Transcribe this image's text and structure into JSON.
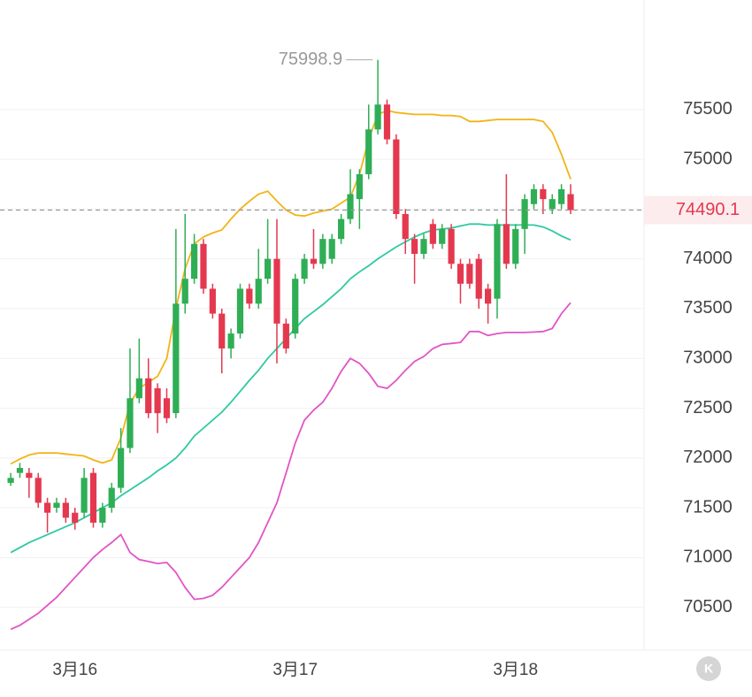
{
  "chart_data": {
    "type": "candlestick",
    "categories": [
      null,
      null,
      null,
      null,
      null,
      null,
      null,
      "3月16",
      null,
      null,
      null,
      null,
      null,
      null,
      null,
      null,
      null,
      null,
      null,
      null,
      null,
      null,
      null,
      null,
      null,
      null,
      null,
      null,
      null,
      null,
      null,
      "3月17",
      null,
      null,
      null,
      null,
      null,
      null,
      null,
      null,
      null,
      null,
      null,
      null,
      null,
      null,
      null,
      null,
      null,
      null,
      null,
      null,
      null,
      null,
      null,
      "3月18",
      null,
      null,
      null,
      null,
      null,
      null
    ],
    "open": [
      71750,
      71850,
      71850,
      71800,
      71550,
      71500,
      71550,
      71450,
      71450,
      71850,
      71350,
      71500,
      71700,
      72100,
      72600,
      72800,
      72700,
      72600,
      72450,
      73550,
      73800,
      74150,
      73700,
      73450,
      73100,
      73250,
      73700,
      73550,
      73800,
      74000,
      73350,
      73250,
      73800,
      74000,
      73950,
      74000,
      74200,
      74400,
      74600,
      74850,
      75300,
      75550,
      75200,
      74450,
      74200,
      74050,
      74350,
      74150,
      74300,
      73950,
      73950,
      74000,
      73700,
      73600,
      74350,
      73950,
      74300,
      74550,
      74700,
      74500,
      74550,
      74650
    ],
    "high": [
      71850,
      71950,
      71900,
      71850,
      71600,
      71600,
      71600,
      71500,
      71900,
      71900,
      71550,
      71750,
      72300,
      73100,
      73200,
      73000,
      72750,
      72700,
      74300,
      74450,
      74250,
      74200,
      73750,
      73500,
      73300,
      73750,
      73750,
      74100,
      74400,
      74400,
      73400,
      73850,
      74050,
      74300,
      74250,
      74250,
      74450,
      74900,
      74900,
      75550,
      75998.9,
      75600,
      75250,
      74500,
      74250,
      74250,
      74400,
      74350,
      74350,
      74000,
      74000,
      74050,
      73750,
      74400,
      74850,
      74350,
      74650,
      74750,
      74750,
      74650,
      74750,
      74750
    ],
    "low": [
      71720,
      71800,
      71600,
      71500,
      71250,
      71450,
      71350,
      71280,
      71400,
      71300,
      71300,
      71450,
      71650,
      72050,
      72550,
      72400,
      72250,
      72350,
      72400,
      73450,
      73750,
      73650,
      73400,
      72850,
      73000,
      73200,
      73500,
      73500,
      73750,
      72950,
      73050,
      73200,
      73750,
      73900,
      73900,
      73950,
      74150,
      74350,
      74300,
      74800,
      75250,
      75150,
      74400,
      74050,
      73750,
      74000,
      74100,
      74100,
      73900,
      73550,
      73700,
      73500,
      73350,
      73400,
      73900,
      73900,
      74050,
      74500,
      74450,
      74450,
      74500,
      74450
    ],
    "close": [
      71800,
      71900,
      71800,
      71550,
      71450,
      71550,
      71400,
      71350,
      71800,
      71350,
      71500,
      71700,
      72100,
      72600,
      72800,
      72450,
      72450,
      72400,
      73550,
      73800,
      74150,
      73700,
      73450,
      73100,
      73250,
      73700,
      73550,
      73800,
      74000,
      73350,
      73100,
      73800,
      74000,
      73950,
      74200,
      74200,
      74400,
      74650,
      74850,
      75300,
      75550,
      75200,
      74450,
      74200,
      74050,
      74200,
      74150,
      74300,
      73950,
      73750,
      73750,
      73600,
      73550,
      74350,
      73950,
      74300,
      74600,
      74700,
      74600,
      74600,
      74700,
      74490.1
    ],
    "up_color": "#2fae55",
    "down_color": "#e4384f",
    "bands": [
      {
        "color": "#f2b416",
        "values": [
          71940,
          71990,
          72030,
          72050,
          72050,
          72050,
          72040,
          72030,
          72020,
          71980,
          71950,
          71980,
          72200,
          72550,
          72700,
          72760,
          72820,
          73000,
          73500,
          73900,
          74150,
          74220,
          74260,
          74290,
          74400,
          74500,
          74580,
          74650,
          74680,
          74580,
          74490,
          74440,
          74430,
          74460,
          74480,
          74500,
          74560,
          74620,
          74850,
          75200,
          75450,
          75490,
          75470,
          75460,
          75450,
          75450,
          75450,
          75440,
          75440,
          75430,
          75380,
          75380,
          75390,
          75400,
          75400,
          75400,
          75400,
          75400,
          75380,
          75270,
          75050,
          74800
        ]
      },
      {
        "color": "#2ec9a2",
        "values": [
          71050,
          71100,
          71150,
          71190,
          71230,
          71270,
          71310,
          71350,
          71400,
          71450,
          71500,
          71550,
          71620,
          71680,
          71740,
          71800,
          71870,
          71930,
          72000,
          72100,
          72220,
          72300,
          72380,
          72460,
          72560,
          72670,
          72780,
          72880,
          73000,
          73100,
          73200,
          73300,
          73400,
          73470,
          73540,
          73620,
          73700,
          73800,
          73870,
          73930,
          74000,
          74060,
          74120,
          74170,
          74220,
          74260,
          74290,
          74300,
          74310,
          74330,
          74350,
          74350,
          74340,
          74340,
          74340,
          74340,
          74340,
          74340,
          74320,
          74280,
          74230,
          74190
        ]
      },
      {
        "color": "#e055c6",
        "values": [
          70280,
          70320,
          70380,
          70440,
          70520,
          70600,
          70700,
          70800,
          70900,
          71000,
          71080,
          71150,
          71230,
          71050,
          70980,
          70960,
          70940,
          70950,
          70850,
          70700,
          70580,
          70590,
          70620,
          70700,
          70800,
          70900,
          71000,
          71150,
          71350,
          71550,
          71850,
          72150,
          72380,
          72480,
          72560,
          72700,
          72870,
          73000,
          72950,
          72850,
          72720,
          72700,
          72780,
          72880,
          72970,
          73020,
          73100,
          73140,
          73150,
          73160,
          73270,
          73270,
          73230,
          73250,
          73260,
          73260,
          73260,
          73265,
          73270,
          73300,
          73450,
          73560
        ]
      }
    ],
    "ylim": [
      70070,
      76600
    ],
    "yticks": [
      70500,
      71000,
      71500,
      72000,
      72500,
      73000,
      73500,
      74000,
      74500,
      75000,
      75500
    ],
    "yticks_shown": [
      70500,
      71000,
      71500,
      72000,
      72500,
      73000,
      73500,
      74000,
      75000,
      75500
    ],
    "grid": true,
    "max_label": 75998.9,
    "last_price": 74490.1
  }
}
